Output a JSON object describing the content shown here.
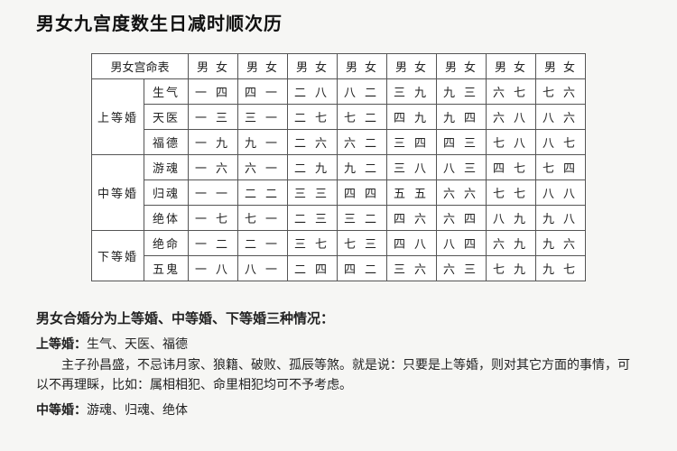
{
  "page_title_partial": "男女九宫度数生日减时顺次历",
  "table": {
    "header_main": "男女宫命表",
    "col_headers": [
      "男女",
      "男女",
      "男女",
      "男女",
      "男女",
      "男女",
      "男女",
      "男女"
    ],
    "groups": [
      {
        "label": "上等婚",
        "rows": [
          {
            "sub": "生气",
            "cells": [
              "一四",
              "四一",
              "二八",
              "八二",
              "三九",
              "九三",
              "六七",
              "七六"
            ]
          },
          {
            "sub": "天医",
            "cells": [
              "一三",
              "三一",
              "二七",
              "七二",
              "四九",
              "九四",
              "六八",
              "八六"
            ]
          },
          {
            "sub": "福德",
            "cells": [
              "一九",
              "九一",
              "二六",
              "六二",
              "三四",
              "四三",
              "七八",
              "八七"
            ]
          }
        ]
      },
      {
        "label": "中等婚",
        "rows": [
          {
            "sub": "游魂",
            "cells": [
              "一六",
              "六一",
              "二九",
              "九二",
              "三八",
              "八三",
              "四七",
              "七四"
            ]
          },
          {
            "sub": "归魂",
            "cells": [
              "一一",
              "二二",
              "三三",
              "四四",
              "五五",
              "六六",
              "七七",
              "八八"
            ]
          },
          {
            "sub": "绝体",
            "cells": [
              "一七",
              "七一",
              "二三",
              "三二",
              "四六",
              "六四",
              "八九",
              "九八"
            ]
          }
        ]
      },
      {
        "label": "下等婚",
        "rows": [
          {
            "sub": "绝命",
            "cells": [
              "一二",
              "二一",
              "三七",
              "七三",
              "四八",
              "八四",
              "六九",
              "九六"
            ]
          },
          {
            "sub": "五鬼",
            "cells": [
              "一八",
              "八一",
              "二四",
              "四二",
              "三六",
              "六三",
              "七九",
              "九七"
            ]
          }
        ]
      }
    ]
  },
  "notes": {
    "heading": "男女合婚分为上等婚、中等婚、下等婚三种情况：",
    "line1_label": "上等婚：",
    "line1_items": "生气、天医、福德",
    "para": "主子孙昌盛，不忌讳月家、狼籍、破败、孤辰等煞。就是说：只要是上等婚，则对其它方面的事情，可以不再理睬，比如：属相相犯、命里相犯均可不予考虑。",
    "line2_label": "中等婚：",
    "line2_items": "游魂、归魂、绝体"
  }
}
